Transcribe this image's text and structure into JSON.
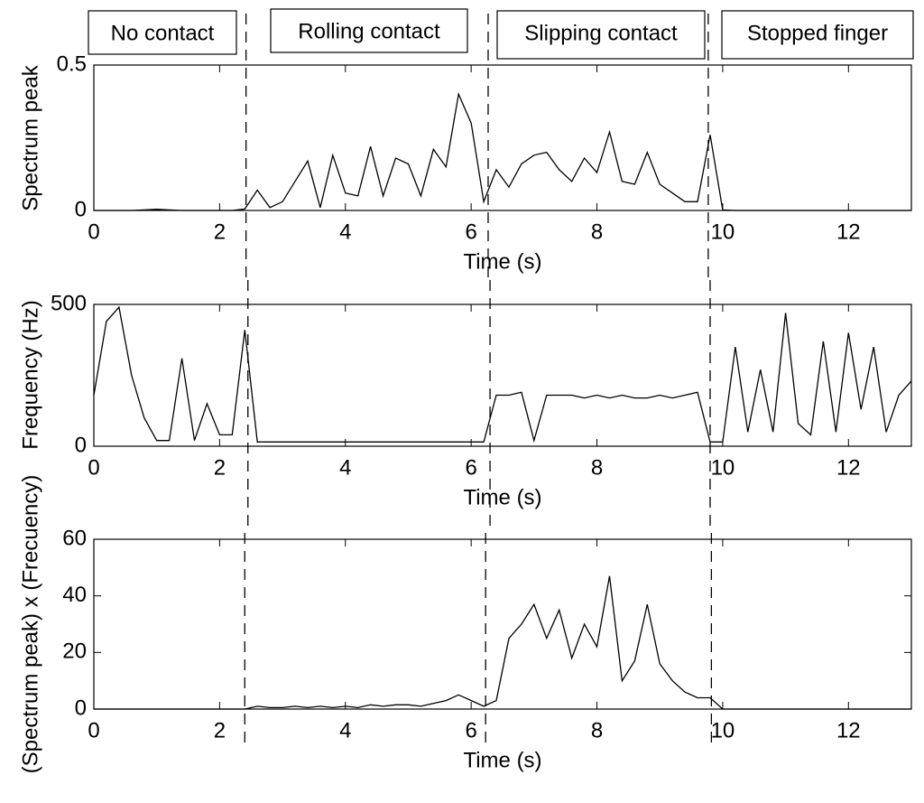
{
  "chart_data": [
    {
      "type": "line",
      "annotations": [
        "No contact",
        "Rolling contact",
        "Slipping contact",
        "Stopped finger"
      ],
      "ylabel": "Spectrum peak",
      "xlabel": "Time (s)",
      "x": [
        0,
        0.2,
        0.4,
        0.6,
        0.8,
        1.0,
        1.2,
        1.4,
        1.6,
        1.8,
        2.0,
        2.2,
        2.4,
        2.6,
        2.8,
        3.0,
        3.2,
        3.4,
        3.6,
        3.8,
        4.0,
        4.2,
        4.4,
        4.6,
        4.8,
        5.0,
        5.2,
        5.4,
        5.6,
        5.8,
        6.0,
        6.2,
        6.4,
        6.6,
        6.8,
        7.0,
        7.2,
        7.4,
        7.6,
        7.8,
        8.0,
        8.2,
        8.4,
        8.6,
        8.8,
        9.0,
        9.2,
        9.4,
        9.6,
        9.8,
        10.0,
        10.2,
        10.4,
        10.6,
        10.8,
        11.0,
        11.2,
        11.4,
        11.6,
        11.8,
        12.0,
        12.2,
        12.4,
        12.6,
        12.8,
        13.0
      ],
      "values": [
        0,
        0,
        0,
        0,
        0.002,
        0.004,
        0.002,
        0,
        0,
        0,
        0,
        0,
        0.005,
        0.07,
        0.01,
        0.03,
        0.1,
        0.17,
        0.01,
        0.19,
        0.06,
        0.05,
        0.22,
        0.05,
        0.18,
        0.16,
        0.05,
        0.21,
        0.15,
        0.4,
        0.3,
        0.03,
        0.14,
        0.08,
        0.16,
        0.19,
        0.2,
        0.14,
        0.1,
        0.18,
        0.13,
        0.27,
        0.1,
        0.09,
        0.2,
        0.09,
        0.06,
        0.03,
        0.03,
        0.26,
        0.002,
        0,
        0,
        0,
        0,
        0,
        0,
        0,
        0,
        0,
        0,
        0,
        0,
        0,
        0,
        0
      ],
      "color": "#000000",
      "xlim": [
        0,
        13
      ],
      "ylim": [
        0,
        0.5
      ],
      "xticks": [
        0,
        2,
        4,
        6,
        8,
        10,
        12
      ],
      "yticks": [
        0,
        0.5
      ],
      "vlines": [
        2.42,
        6.27,
        9.77
      ]
    },
    {
      "type": "line",
      "ylabel": "Frequency (Hz)",
      "xlabel": "Time (s)",
      "x": [
        0,
        0.2,
        0.4,
        0.6,
        0.8,
        1.0,
        1.2,
        1.4,
        1.6,
        1.8,
        2.0,
        2.2,
        2.4,
        2.6,
        2.8,
        3.0,
        3.2,
        3.4,
        3.6,
        3.8,
        4.0,
        4.2,
        4.4,
        4.6,
        4.8,
        5.0,
        5.2,
        5.4,
        5.6,
        5.8,
        6.0,
        6.2,
        6.4,
        6.6,
        6.8,
        7.0,
        7.2,
        7.4,
        7.6,
        7.8,
        8.0,
        8.2,
        8.4,
        8.6,
        8.8,
        9.0,
        9.2,
        9.4,
        9.6,
        9.8,
        10.0,
        10.2,
        10.4,
        10.6,
        10.8,
        11.0,
        11.2,
        11.4,
        11.6,
        11.8,
        12.0,
        12.2,
        12.4,
        12.6,
        12.8,
        13.0
      ],
      "values": [
        180,
        440,
        490,
        250,
        100,
        20,
        20,
        310,
        20,
        150,
        40,
        40,
        410,
        15,
        15,
        15,
        15,
        15,
        15,
        15,
        15,
        15,
        15,
        15,
        15,
        15,
        15,
        15,
        15,
        15,
        15,
        15,
        180,
        180,
        190,
        20,
        180,
        180,
        180,
        170,
        180,
        170,
        180,
        170,
        170,
        180,
        170,
        180,
        190,
        15,
        15,
        350,
        50,
        270,
        50,
        470,
        80,
        40,
        370,
        50,
        400,
        130,
        350,
        50,
        180,
        230
      ],
      "color": "#000000",
      "xlim": [
        0,
        13
      ],
      "ylim": [
        0,
        500
      ],
      "xticks": [
        0,
        2,
        4,
        6,
        8,
        10,
        12
      ],
      "yticks": [
        0,
        500
      ],
      "vlines": [
        2.45,
        6.3,
        9.8
      ]
    },
    {
      "type": "line",
      "ylabel": "(Spectrum peak) x (Frecuency)",
      "xlabel": "Time (s)",
      "x": [
        0,
        0.2,
        0.4,
        0.6,
        0.8,
        1.0,
        1.2,
        1.4,
        1.6,
        1.8,
        2.0,
        2.2,
        2.4,
        2.6,
        2.8,
        3.0,
        3.2,
        3.4,
        3.6,
        3.8,
        4.0,
        4.2,
        4.4,
        4.6,
        4.8,
        5.0,
        5.2,
        5.4,
        5.6,
        5.8,
        6.0,
        6.2,
        6.4,
        6.6,
        6.8,
        7.0,
        7.2,
        7.4,
        7.6,
        7.8,
        8.0,
        8.2,
        8.4,
        8.6,
        8.8,
        9.0,
        9.2,
        9.4,
        9.6,
        9.8,
        10.0,
        10.2,
        10.4,
        10.6,
        10.8,
        11.0,
        11.2,
        11.4,
        11.6,
        11.8,
        12.0,
        12.2,
        12.4,
        12.6,
        12.8,
        13.0
      ],
      "values": [
        0,
        0,
        0,
        0,
        0,
        0,
        0,
        0,
        0,
        0,
        0,
        0,
        0,
        1,
        0.5,
        0.5,
        1,
        0.5,
        1,
        0.5,
        1,
        0.5,
        1.5,
        1,
        1.5,
        1.5,
        1,
        2,
        3,
        5,
        3,
        1,
        3,
        25,
        30,
        37,
        25,
        35,
        18,
        30,
        22,
        47,
        10,
        17,
        37,
        16,
        10,
        6,
        4,
        4,
        0,
        0,
        0,
        0,
        0,
        0,
        0,
        0,
        0,
        0,
        0,
        0,
        0,
        0,
        0,
        0
      ],
      "color": "#000000",
      "xlim": [
        0,
        13
      ],
      "ylim": [
        0,
        60
      ],
      "xticks": [
        0,
        2,
        4,
        6,
        8,
        10,
        12
      ],
      "yticks": [
        0,
        20,
        40,
        60
      ],
      "vlines": [
        2.4,
        6.23,
        9.82
      ]
    }
  ]
}
